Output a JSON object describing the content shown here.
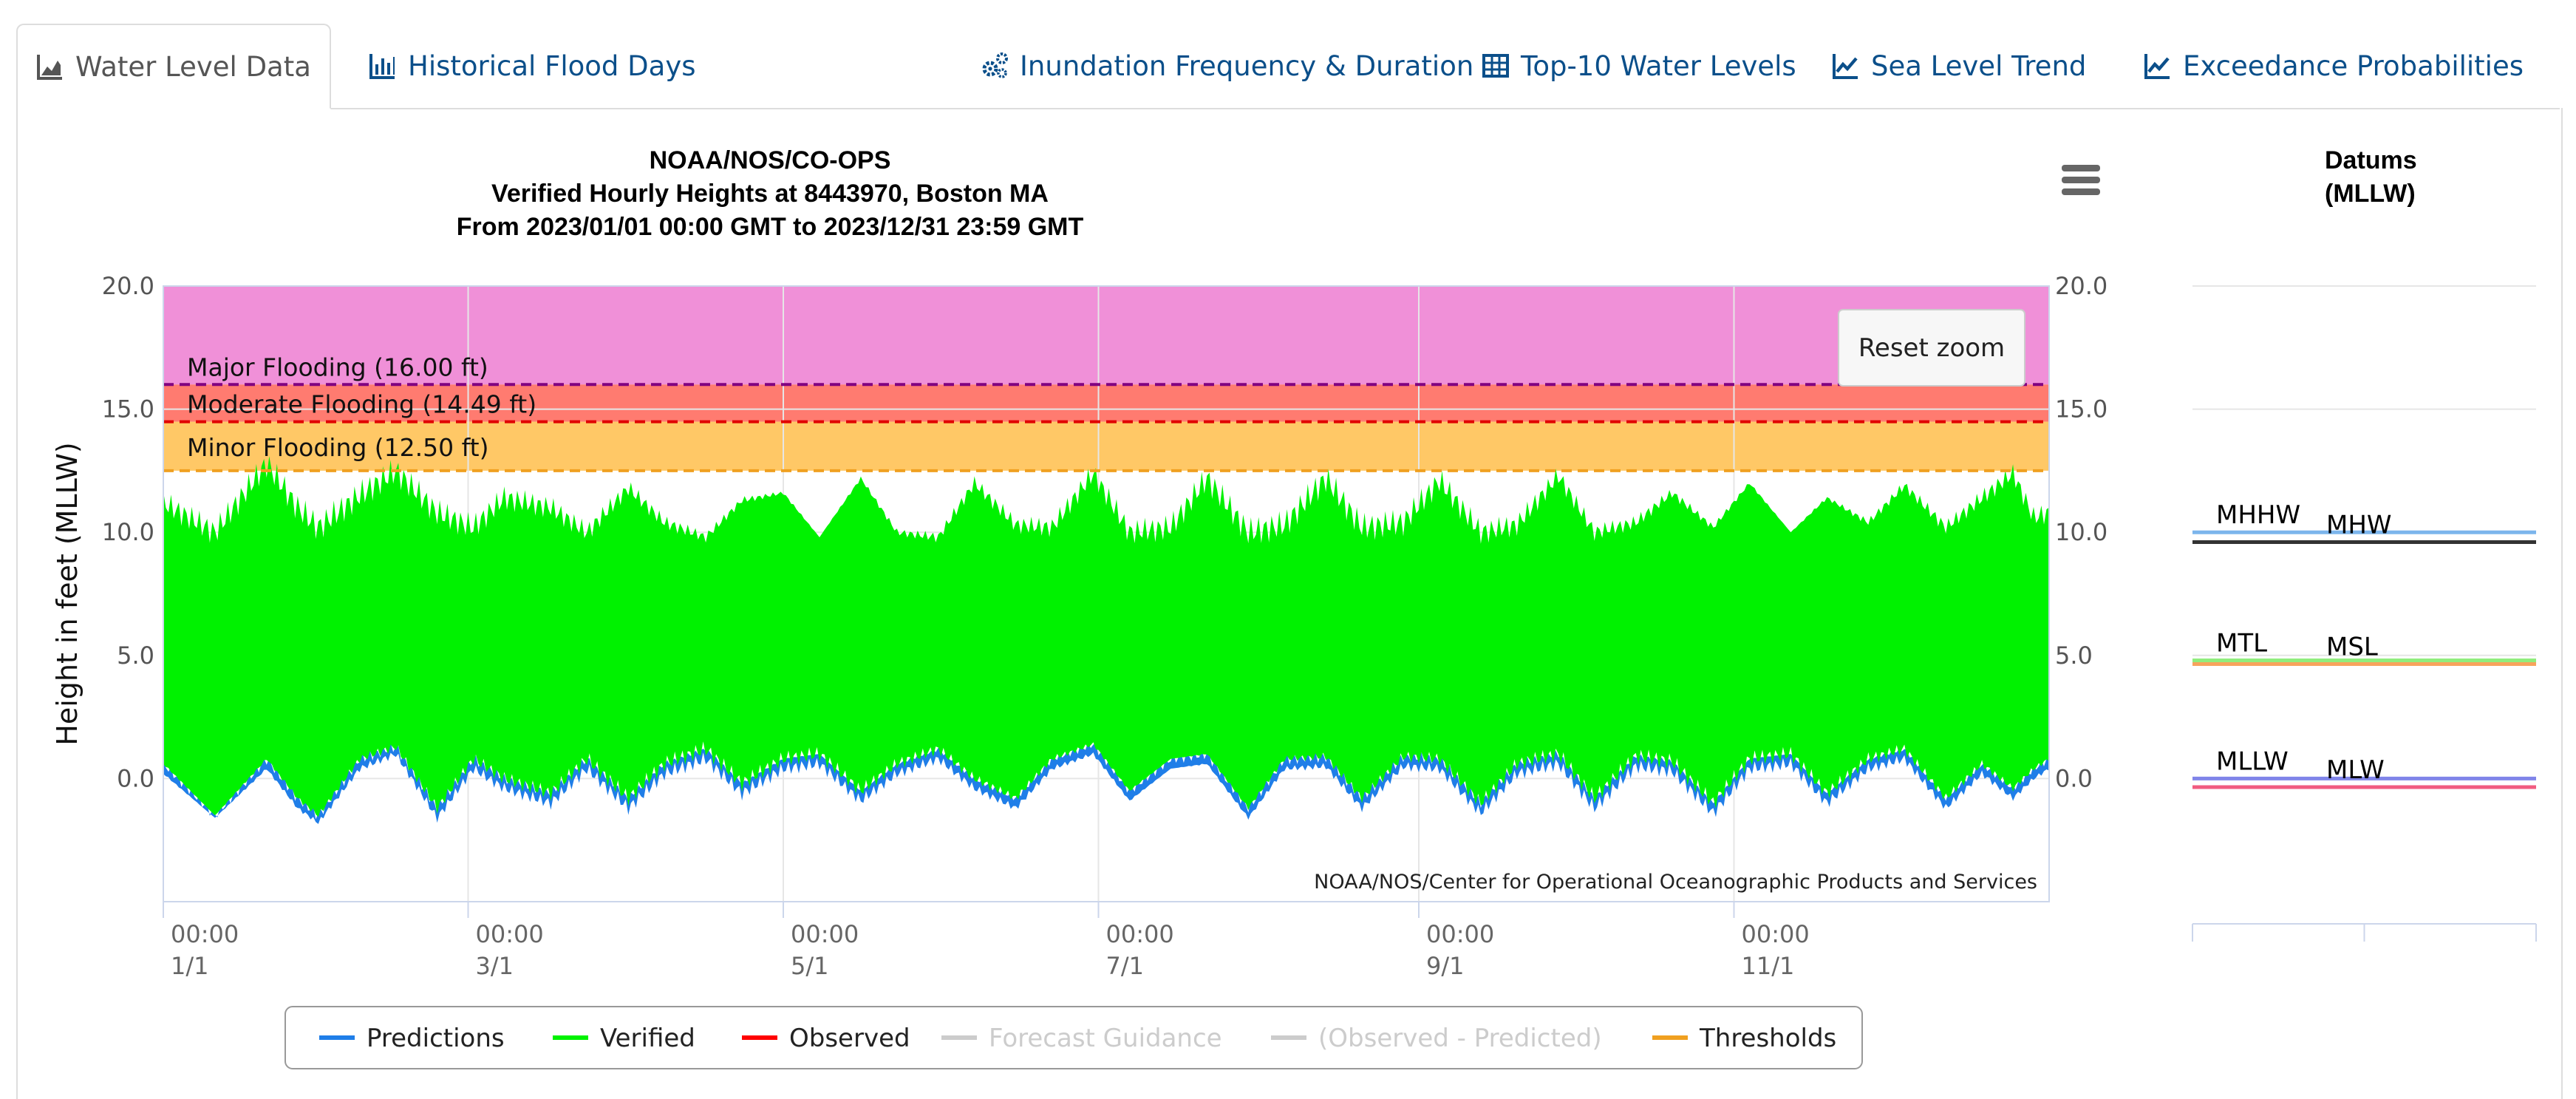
{
  "tabs": [
    {
      "label": "Water Level Data",
      "icon": "area-chart-icon",
      "active": true
    },
    {
      "label": "Historical Flood Days",
      "icon": "bar-chart-icon",
      "active": false
    },
    {
      "label": "Inundation Frequency & Duration",
      "icon": "gears-icon",
      "active": false
    },
    {
      "label": "Top-10 Water Levels",
      "icon": "table-icon",
      "active": false
    },
    {
      "label": "Sea Level Trend",
      "icon": "line-chart-icon",
      "active": false
    },
    {
      "label": "Exceedance Probabilities",
      "icon": "line-chart-icon",
      "active": false
    }
  ],
  "colors": {
    "predictions": "#1f7ee8",
    "verified": "#00f200",
    "observed": "#ff0000",
    "thresholds": "#f0a020",
    "major_band": "#f090d8",
    "moderate_band": "#ff7b70",
    "minor_band": "#ffc866",
    "major_line": "#800080",
    "moderate_line": "#e00000",
    "minor_line": "#f0a020"
  },
  "chart_data": {
    "type": "area",
    "title": "NOAA/NOS/CO-OPS",
    "subtitle_line1": "Verified Hourly Heights at 8443970, Boston MA",
    "subtitle_line2": "From 2023/01/01 00:00 GMT to 2023/12/31 23:59 GMT",
    "ylabel": "Height in feet (MLLW)",
    "ylim": [
      -5,
      20
    ],
    "yticks": [
      "20.0",
      "15.0",
      "10.0",
      "5.0",
      "0.0"
    ],
    "ytick_values": [
      20,
      15,
      10,
      5,
      0
    ],
    "xticks": [
      {
        "time": "00:00",
        "date": "1/1"
      },
      {
        "time": "00:00",
        "date": "3/1"
      },
      {
        "time": "00:00",
        "date": "5/1"
      },
      {
        "time": "00:00",
        "date": "7/1"
      },
      {
        "time": "00:00",
        "date": "9/1"
      },
      {
        "time": "00:00",
        "date": "11/1"
      }
    ],
    "xtick_days": [
      0,
      59,
      120,
      181,
      243,
      304
    ],
    "xlim_days": [
      0,
      365
    ],
    "credit": "NOAA/NOS/Center for Operational Oceanographic Products and Services",
    "reset_zoom_label": "Reset zoom",
    "thresholds": [
      {
        "label": "Major Flooding (16.00 ft)",
        "value": 16.0
      },
      {
        "label": "Moderate Flooding (14.49 ft)",
        "value": 14.49
      },
      {
        "label": "Minor Flooding (12.50 ft)",
        "value": 12.5
      }
    ],
    "envelope": {
      "day": [
        0,
        10,
        20,
        26,
        30,
        38,
        45,
        53,
        60,
        66,
        75,
        82,
        90,
        97,
        105,
        112,
        120,
        127,
        135,
        142,
        150,
        157,
        165,
        172,
        180,
        187,
        195,
        202,
        210,
        217,
        225,
        232,
        240,
        247,
        255,
        262,
        270,
        277,
        285,
        292,
        300,
        307,
        315,
        322,
        330,
        337,
        345,
        352,
        358,
        362,
        365
      ],
      "verified_high": [
        11.2,
        10.0,
        12.8,
        11.0,
        10.2,
        11.5,
        12.5,
        10.8,
        10.2,
        11.4,
        11.0,
        10.0,
        11.8,
        10.4,
        9.8,
        11.3,
        11.6,
        9.8,
        12.2,
        10.0,
        9.8,
        12.0,
        10.3,
        10.2,
        12.4,
        10.0,
        10.2,
        12.2,
        10.0,
        10.3,
        12.2,
        10.2,
        10.4,
        12.1,
        10.0,
        10.3,
        12.3,
        10.0,
        10.4,
        11.6,
        10.2,
        12.0,
        10.0,
        11.4,
        10.4,
        11.9,
        10.2,
        11.4,
        12.4,
        10.6,
        10.8
      ],
      "verified_low": [
        0.6,
        -1.5,
        0.8,
        -0.8,
        -1.5,
        0.8,
        1.3,
        -1.2,
        0.8,
        0.0,
        -0.6,
        0.8,
        -0.8,
        0.6,
        1.2,
        -0.2,
        0.8,
        1.0,
        -0.5,
        0.6,
        1.2,
        0.0,
        -0.8,
        0.8,
        1.4,
        -0.5,
        0.8,
        1.0,
        -1.2,
        0.8,
        0.9,
        -0.8,
        0.9,
        0.8,
        -1.0,
        0.6,
        1.0,
        -0.8,
        0.9,
        0.7,
        -1.0,
        0.8,
        1.0,
        -0.6,
        0.8,
        1.2,
        -0.8,
        0.6,
        -0.4,
        0.4,
        0.8
      ],
      "prediction_low": [
        0.2,
        -1.6,
        0.4,
        -1.2,
        -1.8,
        0.4,
        1.0,
        -1.6,
        0.4,
        -0.4,
        -1.0,
        0.4,
        -1.2,
        0.2,
        0.8,
        -0.6,
        0.4,
        0.6,
        -0.9,
        0.2,
        0.8,
        -0.4,
        -1.2,
        0.4,
        1.0,
        -0.9,
        0.4,
        0.6,
        -1.6,
        0.4,
        0.5,
        -1.2,
        0.5,
        0.4,
        -1.4,
        0.2,
        0.6,
        -1.2,
        0.5,
        0.3,
        -1.4,
        0.4,
        0.6,
        -1.0,
        0.4,
        0.8,
        -1.2,
        0.2,
        -0.8,
        0.0,
        0.4
      ]
    },
    "legend": [
      {
        "name": "Predictions",
        "color": "#1f7ee8",
        "visible": true
      },
      {
        "name": "Verified",
        "color": "#00f200",
        "visible": true
      },
      {
        "name": "Observed",
        "color": "#ff0000",
        "visible": true
      },
      {
        "name": "Forecast Guidance",
        "color": "#cccccc",
        "visible": false
      },
      {
        "name": "(Observed - Predicted)",
        "color": "#cccccc",
        "visible": false
      },
      {
        "name": "Thresholds",
        "color": "#f0a020",
        "visible": true
      }
    ],
    "legend_position": "bottom"
  },
  "datums": {
    "title_line1": "Datums",
    "title_line2": "(MLLW)",
    "items": [
      {
        "name": "MHHW",
        "value": 10.0,
        "color": "#7cb5ec",
        "label_side": "left"
      },
      {
        "name": "MHW",
        "value": 9.6,
        "color": "#333333",
        "label_side": "right"
      },
      {
        "name": "MTL",
        "value": 4.8,
        "color": "#90ed7d",
        "label_side": "left"
      },
      {
        "name": "MSL",
        "value": 4.65,
        "color": "#f7a35c",
        "label_side": "right"
      },
      {
        "name": "MLLW",
        "value": 0.0,
        "color": "#8085e9",
        "label_side": "left"
      },
      {
        "name": "MLW",
        "value": -0.35,
        "color": "#f15c80",
        "label_side": "right"
      }
    ]
  }
}
